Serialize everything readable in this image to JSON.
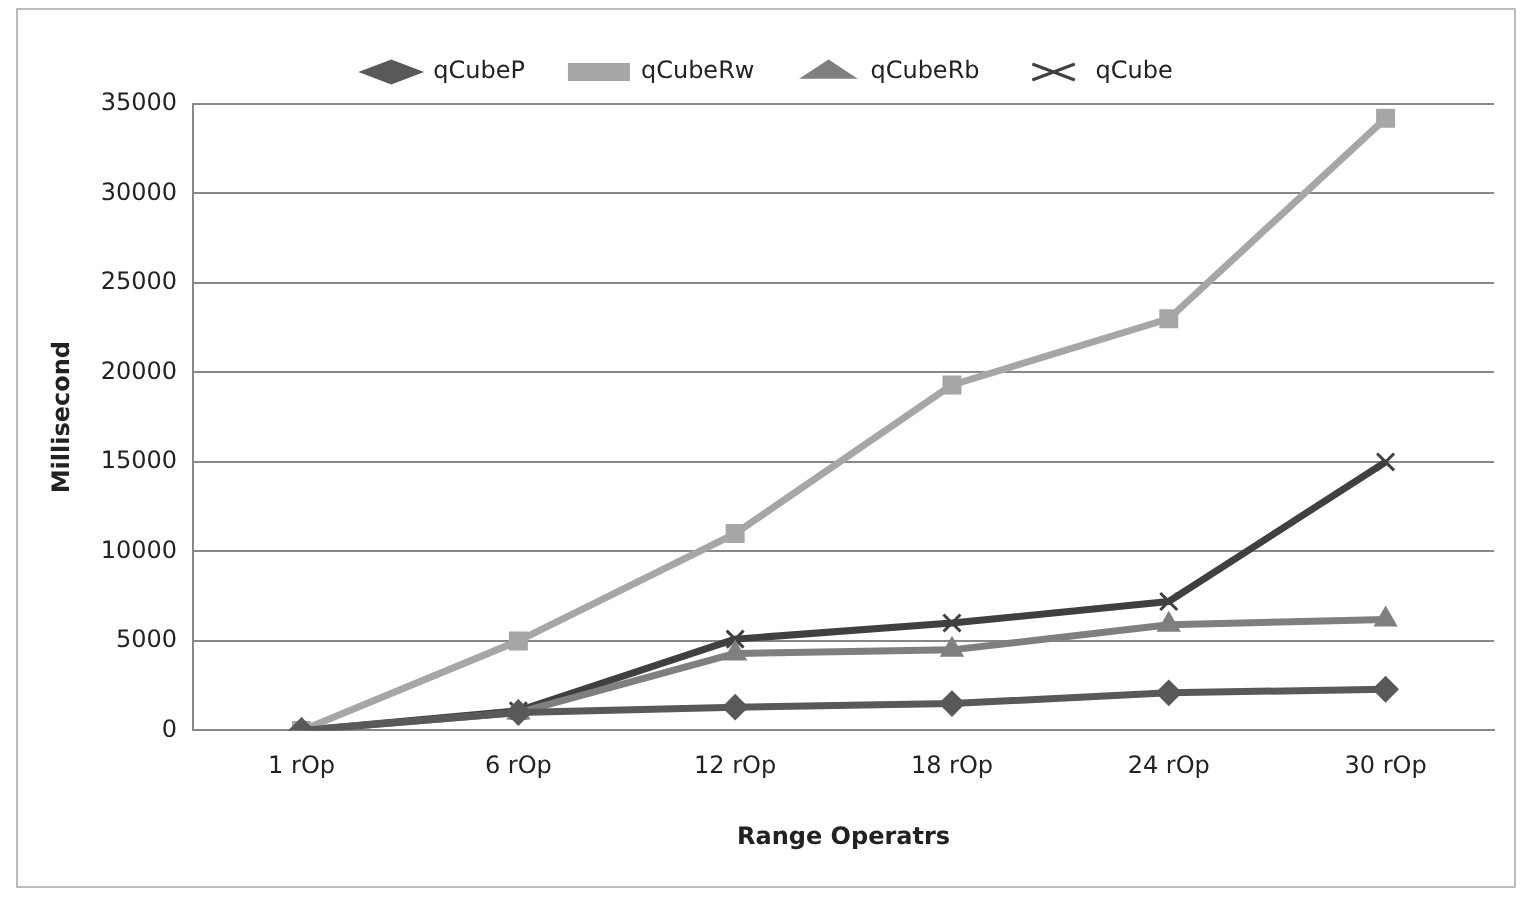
{
  "chart_data": {
    "type": "line",
    "xlabel": "Range Operatrs",
    "ylabel": "Millisecond",
    "categories": [
      "1 rOp",
      "6 rOp",
      "12 rOp",
      "18 rOp",
      "24 rOp",
      "30 rOp"
    ],
    "series": [
      {
        "name": "qCubeP",
        "color": "#595959",
        "marker": "diamond",
        "values": [
          0,
          1000,
          1300,
          1500,
          2100,
          2300
        ]
      },
      {
        "name": "qCubeRw",
        "color": "#a6a6a6",
        "marker": "square",
        "values": [
          0,
          5000,
          11000,
          19300,
          23000,
          34200
        ]
      },
      {
        "name": "qCubeRb",
        "color": "#7f7f7f",
        "marker": "triangle",
        "values": [
          0,
          1000,
          4300,
          4500,
          5900,
          6200
        ]
      },
      {
        "name": "qCube",
        "color": "#404040",
        "marker": "cross",
        "values": [
          0,
          1100,
          5100,
          6000,
          7200,
          15000
        ]
      }
    ],
    "ylim": [
      0,
      35000
    ],
    "yticks": [
      0,
      5000,
      10000,
      15000,
      20000,
      25000,
      30000,
      35000
    ],
    "grid": "y",
    "legend": "top"
  }
}
